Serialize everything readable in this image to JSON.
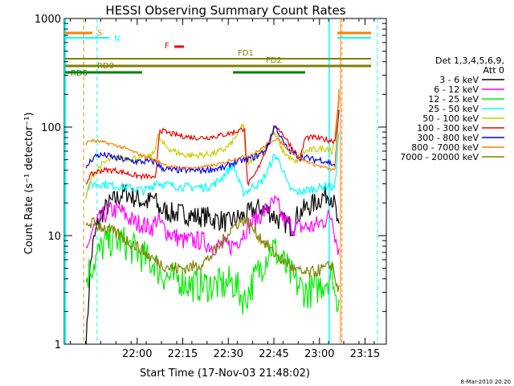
{
  "chart_data": {
    "type": "line",
    "title": "HESSI Observing Summary Count Rates",
    "xlabel": "Start Time (17-Nov-03 21:48:02)",
    "ylabel": "Count Rate (s⁻¹ detector⁻¹)",
    "yscale": "log",
    "ylim": [
      1,
      1000
    ],
    "xlim_minutes": [
      -12,
      94
    ],
    "x_ticks": [
      {
        "m": 12,
        "label": "22:00"
      },
      {
        "m": 27,
        "label": "22:15"
      },
      {
        "m": 42,
        "label": "22:30"
      },
      {
        "m": 57,
        "label": "22:45"
      },
      {
        "m": 72,
        "label": "23:00"
      },
      {
        "m": 87,
        "label": "23:15"
      }
    ],
    "y_ticks": [
      {
        "v": 1,
        "label": "1"
      },
      {
        "v": 10,
        "label": "10"
      },
      {
        "v": 100,
        "label": "100"
      },
      {
        "v": 1000,
        "label": "1000"
      }
    ],
    "legend": {
      "title_lines": [
        "Det 1,3,4,5,6,9,",
        "Att 0"
      ],
      "position": "right"
    },
    "series": [
      {
        "name": "3 - 6 keV",
        "color": "#000000",
        "x": [
          -4.8,
          -4.4,
          -3.9,
          -3.5,
          -2.6,
          -1.2,
          0.4,
          3.1,
          5.5,
          6.8,
          8.7,
          10,
          11.8,
          13.3,
          15.2,
          17.2,
          17.8,
          18.8,
          20.7,
          24,
          27.3,
          30.9,
          34.7,
          37.4,
          39.6,
          41.7,
          44,
          46.3,
          47.4,
          48.8,
          49.9,
          52.5,
          55,
          57.3,
          58.5,
          61.1,
          63.3,
          63.9,
          65.1,
          67.7,
          70.6,
          72.3,
          74.2,
          75.7,
          76.2,
          77.2,
          78.5
        ],
        "y": [
          1,
          1.5,
          3,
          5,
          8,
          12,
          16,
          20,
          22,
          24,
          25,
          23,
          22,
          21,
          20,
          22,
          22,
          18,
          17,
          16,
          16,
          15,
          15,
          14,
          14,
          13,
          14,
          15,
          15,
          16,
          17,
          18,
          17,
          15,
          14,
          13,
          12,
          14,
          16,
          18,
          20,
          22,
          24,
          24,
          22,
          18,
          10
        ]
      },
      {
        "name": "6 - 12 keV",
        "color": "#ff00ff",
        "x": [
          -4.8,
          -4.4,
          -3.9,
          -2.8,
          -0.5,
          2.9,
          6.6,
          8.5,
          9.8,
          11.8,
          13.5,
          15.4,
          17.2,
          18.1,
          19.6,
          21.7,
          24.1,
          26.9,
          30.2,
          33.4,
          36.3,
          39.2,
          41.2,
          43,
          45.2,
          47.4,
          48.3,
          50.7,
          53.2,
          55.2,
          57.4,
          58.3,
          60.1,
          63.5,
          66.6,
          69.6,
          72.2,
          73.8,
          75.3,
          76.3,
          77.2,
          78.5
        ],
        "y": [
          7,
          7.3,
          9,
          11,
          14,
          17,
          17,
          15,
          14,
          13,
          13,
          12,
          12,
          14,
          13,
          11,
          10,
          9,
          9,
          9,
          8,
          8,
          8,
          8,
          9,
          11,
          12,
          14,
          16,
          18,
          20,
          19,
          14,
          12,
          12,
          12,
          13,
          14,
          15,
          15,
          10,
          7
        ]
      },
      {
        "name": "12 - 25 keV",
        "color": "#00ee00",
        "x": [
          -4.8,
          -3.5,
          -1.8,
          0.7,
          2.9,
          6.9,
          9.2,
          12.3,
          15.3,
          16.9,
          17.8,
          18.5,
          19.8,
          23.1,
          26,
          29.5,
          34,
          38.5,
          41.3,
          42.7,
          44.3,
          47.4,
          48.5,
          50.7,
          53.9,
          56.2,
          57.9,
          61.1,
          63.3,
          64.9,
          67.8,
          70.7,
          74.5,
          76.5,
          77.2,
          78.5
        ],
        "y": [
          4,
          5,
          6,
          8,
          9,
          9,
          8,
          7,
          6,
          5.5,
          6,
          5,
          4.5,
          4,
          4,
          3.5,
          3.5,
          3.5,
          3.5,
          3.8,
          3.5,
          2.5,
          3,
          4,
          6,
          8,
          7,
          5,
          4,
          3.5,
          3,
          3.2,
          4,
          4.5,
          2.5,
          2.8
        ]
      },
      {
        "name": "25 - 50 keV",
        "color": "#00ffff",
        "x": [
          -4.8,
          -3.9,
          -2.4,
          0.5,
          4.1,
          7.8,
          11,
          14.3,
          17.2,
          17.8,
          19.9,
          23.4,
          27.3,
          30.2,
          32.8,
          34.9,
          36.3,
          37.4,
          38.9,
          41.2,
          43.7,
          46.7,
          48.6,
          50.3,
          52.5,
          55,
          56.2,
          57.4,
          58.5,
          60.1,
          61.3,
          62.9,
          64.9,
          67.2,
          70.2,
          72.5,
          74.9,
          76.6,
          77.2,
          78.5
        ],
        "y": [
          25,
          28,
          30,
          30,
          29,
          28,
          27,
          26,
          28,
          32,
          30,
          29,
          28,
          28,
          28,
          28,
          29,
          30,
          32,
          38,
          45,
          25,
          26,
          29,
          30,
          40,
          48,
          55,
          50,
          40,
          30,
          26,
          25,
          26,
          27,
          28,
          29,
          27,
          30,
          100
        ]
      },
      {
        "name": "50 - 100 keV",
        "color": "#cccc00",
        "x": [
          -4.8,
          -3.7,
          -2.1,
          0.3,
          2.9,
          6.2,
          9.2,
          12.4,
          15,
          16.8,
          17.7,
          18.7,
          20.4,
          23.1,
          25.2,
          28.1,
          31.3,
          35.2,
          37.9,
          40.6,
          42.9,
          45.5,
          47,
          47.8,
          49.3,
          51.5,
          53.2,
          55,
          56.6,
          58.1,
          59.6,
          61.3,
          63,
          64.1,
          65.4,
          67.7,
          70.3,
          72.4,
          74.3,
          75.6,
          76.1,
          77.2,
          78.5
        ],
        "y": [
          22,
          30,
          38,
          45,
          50,
          52,
          52,
          52,
          52,
          55,
          60,
          85,
          70,
          62,
          58,
          55,
          55,
          56,
          58,
          62,
          70,
          90,
          110,
          45,
          48,
          55,
          60,
          70,
          90,
          80,
          62,
          55,
          50,
          46,
          55,
          60,
          62,
          63,
          64,
          65,
          55,
          90,
          200
        ]
      },
      {
        "name": "100 - 300 keV",
        "color": "#ee0000",
        "x": [
          -4.8,
          -3.8,
          -2.1,
          0.4,
          4.6,
          7.9,
          11.1,
          13.7,
          16.3,
          17.6,
          18.1,
          19.3,
          21.2,
          24.5,
          27.7,
          30.5,
          34.2,
          37.4,
          40.5,
          44.1,
          46.5,
          47.4,
          48.2,
          49.5,
          51.2,
          52.9,
          55.2,
          56.5,
          58.3,
          60.1,
          62.9,
          64.7,
          65.6,
          67.3,
          70.2,
          72.4,
          74.8,
          76.4,
          77.2,
          78.5
        ],
        "y": [
          30,
          35,
          38,
          40,
          40,
          38,
          36,
          35,
          35,
          33,
          33,
          95,
          90,
          85,
          82,
          80,
          80,
          82,
          85,
          90,
          95,
          100,
          30,
          32,
          38,
          50,
          70,
          90,
          100,
          85,
          65,
          55,
          50,
          80,
          80,
          78,
          76,
          75,
          75,
          200
        ]
      },
      {
        "name": "300 - 800 keV",
        "color": "#0000ee",
        "x": [
          -4.8,
          -4.2,
          -3.1,
          -1.3,
          1.6,
          4.7,
          8,
          11.6,
          15.1,
          17.3,
          18.1,
          19.9,
          23.5,
          27.2,
          29.7,
          32.8,
          36.8,
          40.6,
          42.4,
          44.9,
          47.4,
          50.6,
          53.9,
          55.8,
          57.2,
          58.5,
          60.3,
          62.1,
          64.5,
          67.9,
          70.2,
          72.6,
          74.5,
          76.6,
          77.2,
          78.5
        ],
        "y": [
          40,
          45,
          50,
          55,
          55,
          52,
          50,
          48,
          48,
          48,
          48,
          42,
          40,
          40,
          40,
          40,
          41,
          42,
          45,
          48,
          50,
          53,
          60,
          75,
          105,
          90,
          70,
          60,
          55,
          52,
          50,
          50,
          48,
          45,
          45,
          160
        ]
      },
      {
        "name": "800 - 7000 keV",
        "color": "#ff8000",
        "x": [
          -4.8,
          -3.9,
          -2.4,
          0.4,
          3.2,
          7.1,
          10.3,
          13.3,
          16.1,
          17.6,
          19.2,
          21.2,
          23.6,
          26.8,
          30.8,
          34.4,
          38.2,
          40.6,
          42.8,
          45.7,
          49.1,
          51.8,
          54.4,
          56.7,
          58.1,
          59.4,
          61.1,
          63.2,
          66.6,
          70.5,
          74,
          77.2,
          78.5
        ],
        "y": [
          70,
          75,
          75,
          73,
          70,
          65,
          60,
          55,
          52,
          50,
          48,
          45,
          43,
          42,
          42,
          43,
          45,
          47,
          50,
          52,
          55,
          60,
          68,
          76,
          78,
          72,
          65,
          58,
          50,
          45,
          42,
          40,
          250
        ]
      },
      {
        "name": "7000 - 20000 keV",
        "color": "#808000",
        "x": [
          -4.8,
          -4,
          -2.6,
          -1.2,
          0.7,
          3.3,
          6.5,
          8.8,
          11.8,
          14.6,
          17.4,
          19.9,
          23.8,
          27.6,
          31.8,
          35.1,
          38.3,
          40.3,
          42.4,
          44.9,
          47.4,
          48.7,
          50.7,
          53.5,
          56.8,
          59.6,
          61.8,
          63.2,
          66.2,
          69.2,
          71.6,
          74.5,
          76.2,
          77.2,
          78.5
        ],
        "y": [
          12,
          13,
          13,
          12.5,
          12,
          11,
          10,
          9,
          8,
          7,
          6,
          5.5,
          5,
          5,
          5.3,
          6,
          7.5,
          9,
          11,
          13,
          14,
          13,
          11,
          9,
          7,
          6,
          5.5,
          5,
          4.5,
          4.5,
          4.8,
          5,
          5.5,
          4,
          3
        ]
      }
    ],
    "state_bars": [
      {
        "label": "S",
        "color": "#ff8000",
        "level": "top"
      },
      {
        "label": "N",
        "color": "#00ffff",
        "level": "top"
      },
      {
        "label": "F",
        "color": "#ee0000",
        "level": "flare"
      },
      {
        "label": "FD1",
        "color": "#808000",
        "level": "upper"
      },
      {
        "label": "FD2",
        "color": "#808000",
        "level": "upper"
      },
      {
        "label": "RD0",
        "color": "#808000",
        "level": "middle"
      },
      {
        "label": "RD6",
        "color": "#008000",
        "level": "lower"
      }
    ],
    "footer_timestamp": "8-Mar-2010 20:20"
  }
}
